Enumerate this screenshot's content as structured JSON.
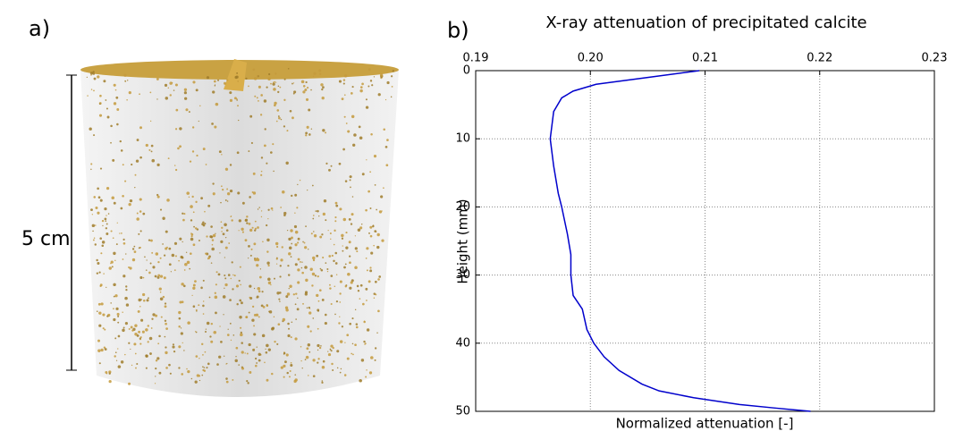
{
  "panel_a": {
    "label": "a)",
    "scale_label": "5 cm"
  },
  "chart_data": {
    "type": "line",
    "panel_label": "b)",
    "title": "X-ray attenuation of precipitated calcite",
    "x_label": "Normalized attenuation [-]",
    "y_label": "Height (mm)",
    "xlim": [
      0.19,
      0.23
    ],
    "xticks": [
      0.19,
      {
        "value": 0.2,
        "label": "0.20"
      },
      0.21,
      0.22,
      0.23
    ],
    "ylim": [
      0,
      50
    ],
    "yticks": [
      0,
      10,
      20,
      30,
      40,
      50
    ],
    "invert_y": true,
    "xaxis_position": "top",
    "grid": true,
    "series": [
      {
        "color": "#0000cc",
        "y": [
          0,
          1,
          2,
          3,
          4,
          6,
          10,
          14,
          18,
          20,
          24,
          27,
          30,
          33,
          35,
          38,
          40,
          42,
          44,
          46,
          47,
          48,
          49,
          49.5,
          50
        ],
        "values": [
          0.2095,
          0.205,
          0.2005,
          0.1985,
          0.1975,
          0.1968,
          0.1965,
          0.1968,
          0.1972,
          0.1975,
          0.198,
          0.1983,
          0.1983,
          0.1985,
          0.1993,
          0.1997,
          0.2003,
          0.2012,
          0.2025,
          0.2045,
          0.206,
          0.209,
          0.213,
          0.216,
          0.2192
        ]
      }
    ]
  }
}
